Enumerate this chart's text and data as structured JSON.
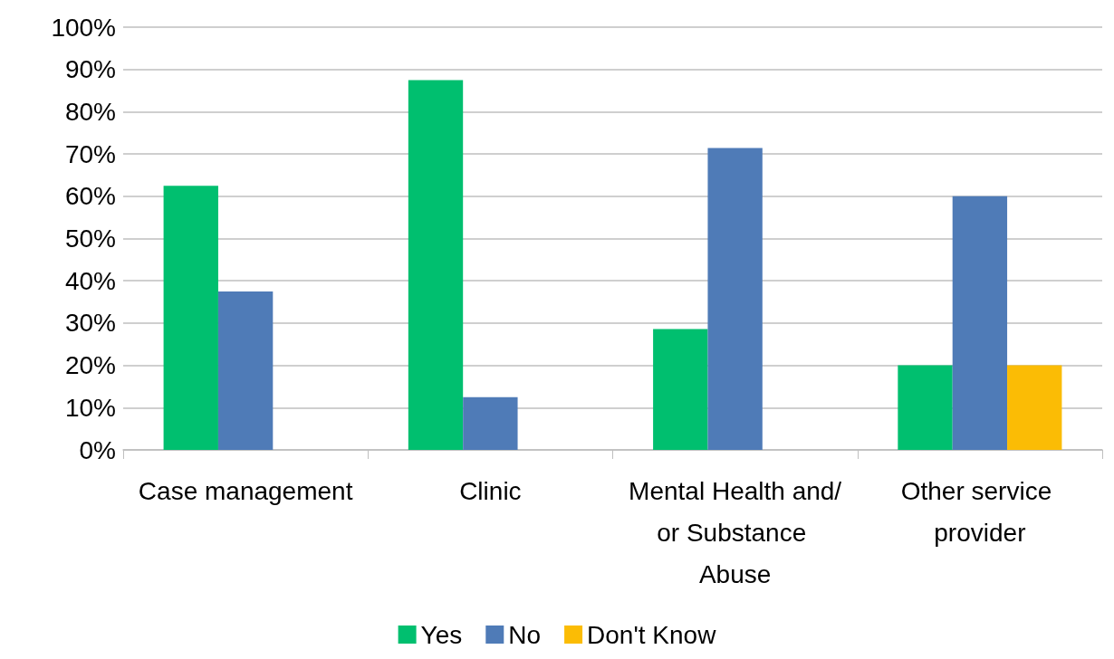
{
  "chart_data": {
    "type": "bar",
    "categories": [
      "Case management",
      "Clinic",
      "Mental Health and/or Substance Abuse",
      "Other service provider"
    ],
    "series": [
      {
        "name": "Yes",
        "color": "#00bf6f",
        "values": [
          62.5,
          87.5,
          28.6,
          20
        ]
      },
      {
        "name": "No",
        "color": "#4f7bb7",
        "values": [
          37.5,
          12.5,
          71.4,
          60
        ]
      },
      {
        "name": "Don't Know",
        "color": "#fbbc05",
        "values": [
          null,
          null,
          null,
          20
        ]
      }
    ],
    "ylim": [
      0,
      100
    ],
    "yticks": [
      {
        "value": 0,
        "label": "0%"
      },
      {
        "value": 10,
        "label": "10%"
      },
      {
        "value": 20,
        "label": "20%"
      },
      {
        "value": 30,
        "label": "30%"
      },
      {
        "value": 40,
        "label": "40%"
      },
      {
        "value": 50,
        "label": "50%"
      },
      {
        "value": 60,
        "label": "60%"
      },
      {
        "value": 70,
        "label": "70%"
      },
      {
        "value": 80,
        "label": "80%"
      },
      {
        "value": 90,
        "label": "90%"
      },
      {
        "value": 100,
        "label": "100%"
      }
    ],
    "grid": "y",
    "legend": "bottom"
  }
}
